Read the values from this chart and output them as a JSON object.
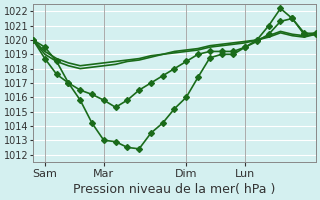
{
  "title": "",
  "xlabel": "Pression niveau de la mer( hPa )",
  "ylabel": "",
  "ylim": [
    1011.5,
    1022.5
  ],
  "xlim": [
    0,
    24
  ],
  "yticks": [
    1012,
    1013,
    1014,
    1015,
    1016,
    1017,
    1018,
    1019,
    1020,
    1021,
    1022
  ],
  "xtick_positions": [
    1,
    6,
    13,
    18,
    24
  ],
  "xtick_labels": [
    "Sam",
    "Mar",
    "Dim",
    "Lun",
    ""
  ],
  "bg_color": "#d4f0f0",
  "grid_color": "#ffffff",
  "line_color": "#1a6b1a",
  "lines": [
    [
      1020.0,
      1019.5,
      1018.5,
      1017.0,
      1015.8,
      1014.2,
      1013.0,
      1012.9,
      1012.5,
      1012.4,
      1013.5,
      1014.2,
      1015.2,
      1016.0,
      1017.4,
      1018.75,
      1019.0,
      1019.0,
      1019.5,
      1020.0,
      1021.0,
      1022.2,
      1021.5,
      1020.4,
      1020.5
    ],
    [
      1020.0,
      1019.0,
      1018.5,
      1018.2,
      1018.0,
      1018.1,
      1018.2,
      1018.3,
      1018.5,
      1018.6,
      1018.8,
      1019.0,
      1019.1,
      1019.2,
      1019.3,
      1019.5,
      1019.6,
      1019.7,
      1019.8,
      1020.0,
      1020.2,
      1020.5,
      1020.3,
      1020.2,
      1020.4
    ],
    [
      1020.0,
      1019.2,
      1018.7,
      1018.4,
      1018.2,
      1018.3,
      1018.4,
      1018.5,
      1018.6,
      1018.7,
      1018.9,
      1019.0,
      1019.2,
      1019.3,
      1019.4,
      1019.6,
      1019.7,
      1019.8,
      1019.9,
      1020.0,
      1020.3,
      1020.6,
      1020.4,
      1020.3,
      1020.4
    ],
    [
      1020.0,
      1018.7,
      1017.6,
      1017.0,
      1016.5,
      1016.2,
      1015.8,
      1015.3,
      1015.8,
      1016.5,
      1017.0,
      1017.5,
      1018.0,
      1018.5,
      1019.0,
      1019.2,
      1019.2,
      1019.2,
      1019.5,
      1019.9,
      1020.4,
      1021.3,
      1021.5,
      1020.5,
      1020.4
    ]
  ],
  "marker_lines": [
    0,
    3
  ],
  "marker": "D",
  "markersize": 3.0,
  "linewidth": 1.2,
  "vline_positions": [
    1,
    6,
    13,
    18,
    24
  ],
  "vline_color": "#888888",
  "fontsize_xlabel": 9,
  "fontsize_ytick": 7,
  "fontsize_xtick": 8
}
